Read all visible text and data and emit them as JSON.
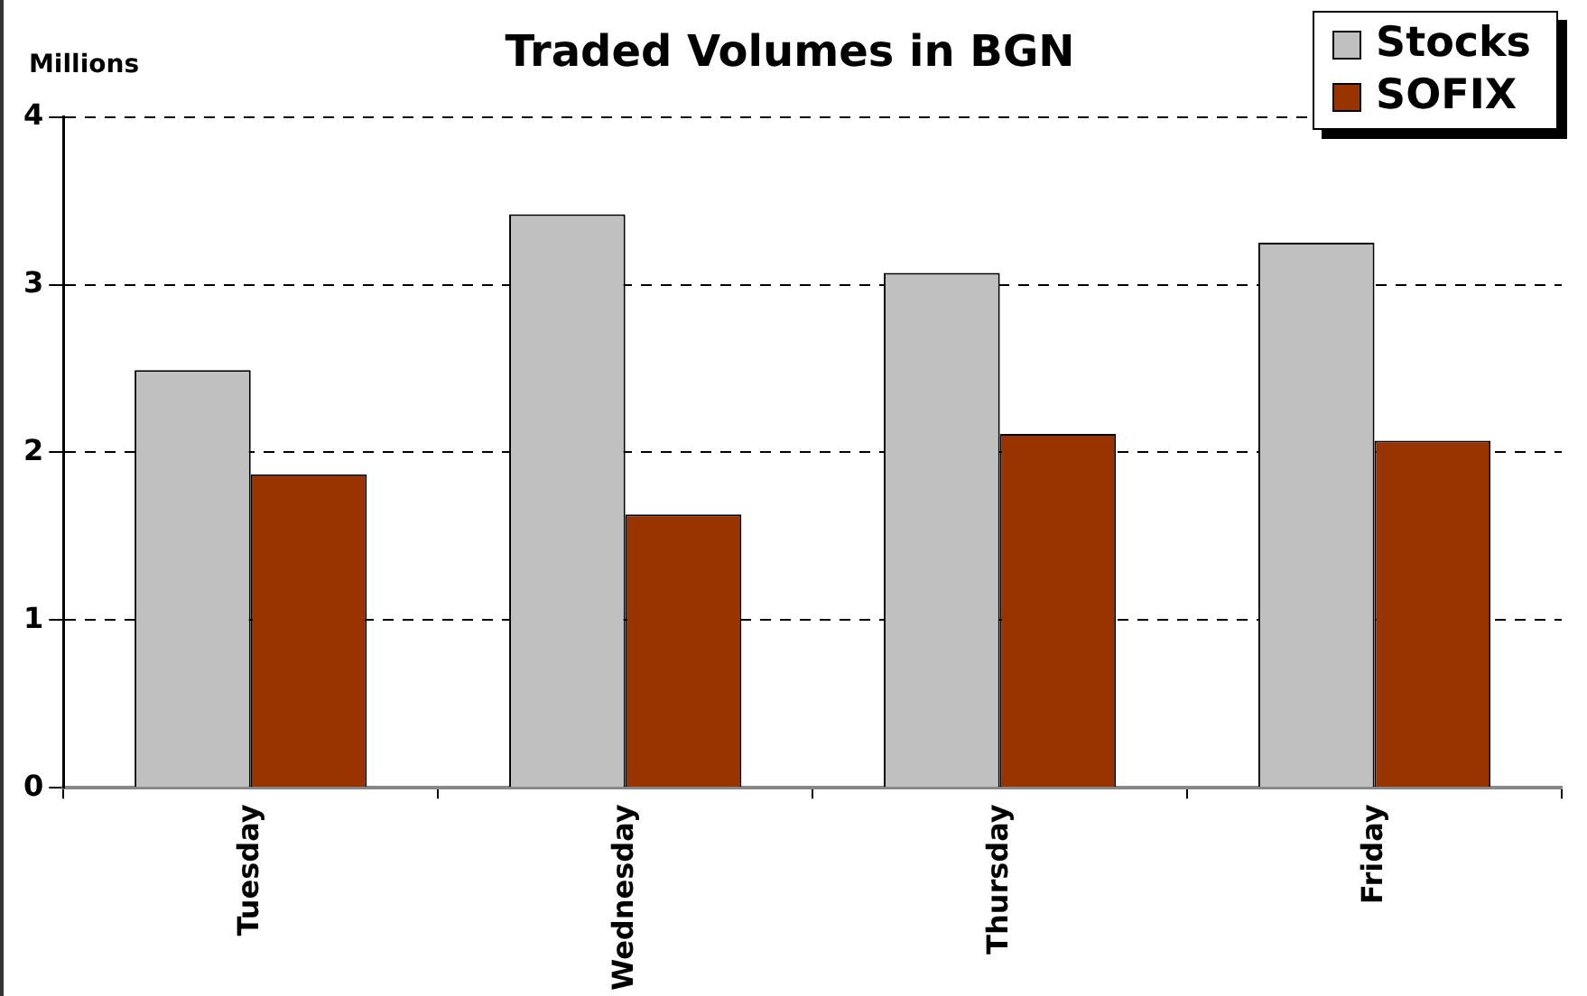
{
  "chart_data": {
    "type": "bar",
    "title": "Traded Volumes in BGN",
    "ylabel": "Millions",
    "categories": [
      "Tuesday",
      "Wednesday",
      "Thursday",
      "Friday"
    ],
    "series": [
      {
        "name": "Stocks",
        "color": "#c0c0c0",
        "values": [
          2.49,
          3.42,
          3.07,
          3.25
        ]
      },
      {
        "name": "SOFIX",
        "color": "#993300",
        "values": [
          1.87,
          1.63,
          2.11,
          2.07
        ]
      }
    ],
    "ylim": [
      0,
      4
    ],
    "yticks": [
      0,
      1,
      2,
      3,
      4
    ],
    "grid": "y",
    "legend": "top right"
  }
}
